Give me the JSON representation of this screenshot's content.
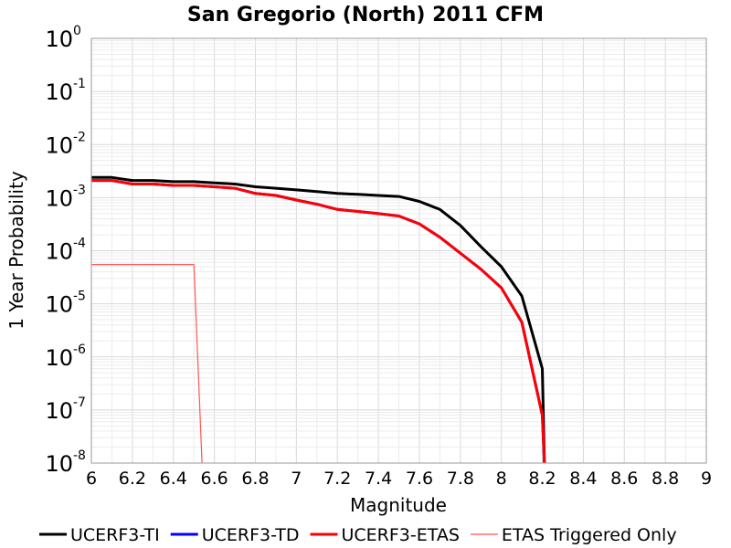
{
  "chart_data": {
    "type": "line",
    "title": "San Gregorio (North) 2011 CFM",
    "xlabel": "Magnitude",
    "ylabel": "1 Year Probability",
    "xlim": [
      6,
      9
    ],
    "ylim": [
      1e-08,
      1
    ],
    "yscale": "log",
    "grid": true,
    "legend_position": "bottom",
    "x_ticks": [
      "6",
      "6.2",
      "6.4",
      "6.6",
      "6.8",
      "7",
      "7.2",
      "7.4",
      "7.6",
      "7.8",
      "8",
      "8.2",
      "8.4",
      "8.6",
      "8.8",
      "9"
    ],
    "y_ticks": [
      {
        "base": "10",
        "exp": "0"
      },
      {
        "base": "10",
        "exp": "-1"
      },
      {
        "base": "10",
        "exp": "-2"
      },
      {
        "base": "10",
        "exp": "-3"
      },
      {
        "base": "10",
        "exp": "-4"
      },
      {
        "base": "10",
        "exp": "-5"
      },
      {
        "base": "10",
        "exp": "-6"
      },
      {
        "base": "10",
        "exp": "-7"
      },
      {
        "base": "10",
        "exp": "-8"
      }
    ],
    "series": [
      {
        "name": "UCERF3-TI",
        "color": "#000000",
        "width": 3,
        "x": [
          6.0,
          6.1,
          6.2,
          6.3,
          6.4,
          6.5,
          6.6,
          6.7,
          6.8,
          6.9,
          7.0,
          7.1,
          7.2,
          7.3,
          7.4,
          7.5,
          7.6,
          7.7,
          7.8,
          7.9,
          8.0,
          8.1,
          8.2,
          8.21
        ],
        "y": [
          0.0024,
          0.0024,
          0.0021,
          0.0021,
          0.002,
          0.002,
          0.0019,
          0.0018,
          0.0016,
          0.0015,
          0.0014,
          0.0013,
          0.0012,
          0.00115,
          0.0011,
          0.00105,
          0.00085,
          0.0006,
          0.0003,
          0.00012,
          5e-05,
          1.4e-05,
          6e-07,
          1e-08
        ]
      },
      {
        "name": "UCERF3-TD",
        "color": "#0000ff",
        "width": 3,
        "x": [
          6.0,
          6.1,
          6.2,
          6.3,
          6.4,
          6.5,
          6.6,
          6.7,
          6.8,
          6.9,
          7.0,
          7.1,
          7.2,
          7.3,
          7.4,
          7.5,
          7.6,
          7.7,
          7.8,
          7.9,
          8.0,
          8.1,
          8.2,
          8.21
        ],
        "y": [
          0.0021,
          0.0021,
          0.0018,
          0.0018,
          0.0017,
          0.0017,
          0.0016,
          0.0015,
          0.0012,
          0.0011,
          0.0009,
          0.00075,
          0.0006,
          0.00055,
          0.0005,
          0.00045,
          0.00032,
          0.00018,
          9e-05,
          4.5e-05,
          2e-05,
          4.5e-06,
          8e-08,
          1e-08
        ]
      },
      {
        "name": "UCERF3-ETAS",
        "color": "#ff0000",
        "width": 3,
        "x": [
          6.0,
          6.1,
          6.2,
          6.3,
          6.4,
          6.5,
          6.6,
          6.7,
          6.8,
          6.9,
          7.0,
          7.1,
          7.2,
          7.3,
          7.4,
          7.5,
          7.6,
          7.7,
          7.8,
          7.9,
          8.0,
          8.1,
          8.2,
          8.21
        ],
        "y": [
          0.0021,
          0.0021,
          0.0018,
          0.0018,
          0.0017,
          0.0017,
          0.0016,
          0.0015,
          0.0012,
          0.0011,
          0.0009,
          0.00075,
          0.0006,
          0.00055,
          0.0005,
          0.00045,
          0.00032,
          0.00018,
          9e-05,
          4.5e-05,
          2e-05,
          4.5e-06,
          8e-08,
          1e-08
        ]
      },
      {
        "name": "ETAS Triggered Only",
        "color": "#ff5555",
        "width": 1.2,
        "x": [
          6.0,
          6.5,
          6.5,
          6.54
        ],
        "y": [
          5.5e-05,
          5.5e-05,
          5.5e-05,
          1e-08
        ]
      }
    ]
  }
}
